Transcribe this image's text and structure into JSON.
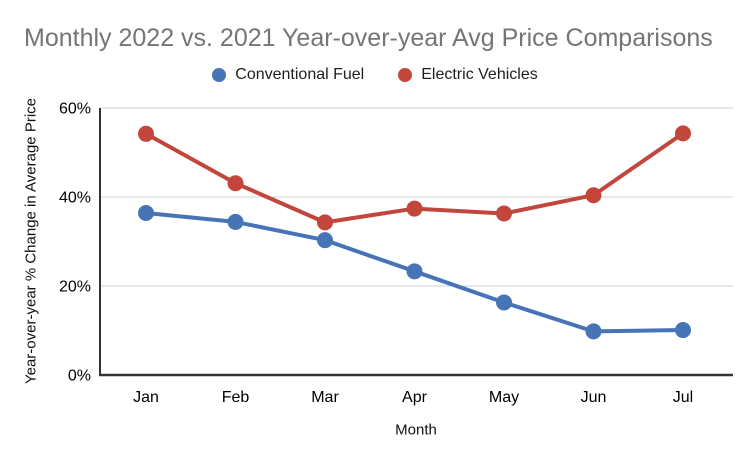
{
  "chart": {
    "title": "Monthly 2022 vs. 2021 Year-over-year Avg Price Comparisons"
  },
  "chart_data": {
    "type": "line",
    "title": "Monthly 2022 vs. 2021 Year-over-year Avg Price Comparisons",
    "categories": [
      "Jan",
      "Feb",
      "Mar",
      "Apr",
      "May",
      "Jun",
      "Jul"
    ],
    "series": [
      {
        "name": "Conventional Fuel",
        "color": "#4674b7",
        "values": [
          36.4,
          34.4,
          30.3,
          23.3,
          16.3,
          9.8,
          10.1
        ]
      },
      {
        "name": "Electric Vehicles",
        "color": "#c3463d",
        "values": [
          54.2,
          43.1,
          34.3,
          37.4,
          36.3,
          40.4,
          54.3
        ]
      }
    ],
    "xlabel": "Month",
    "ylabel": "Year-over-year % Change in Average Price",
    "ylim": [
      0,
      60
    ],
    "yticks": [
      0,
      20,
      40,
      60
    ],
    "ytick_suffix": "%",
    "grid": "horizontal",
    "legend_position": "top",
    "marker": "circle"
  },
  "colors": {
    "title_text": "#757575",
    "axis_text": "#000000",
    "gridline": "#d9d9d9",
    "axis_line": "#333333",
    "background": "#ffffff"
  }
}
